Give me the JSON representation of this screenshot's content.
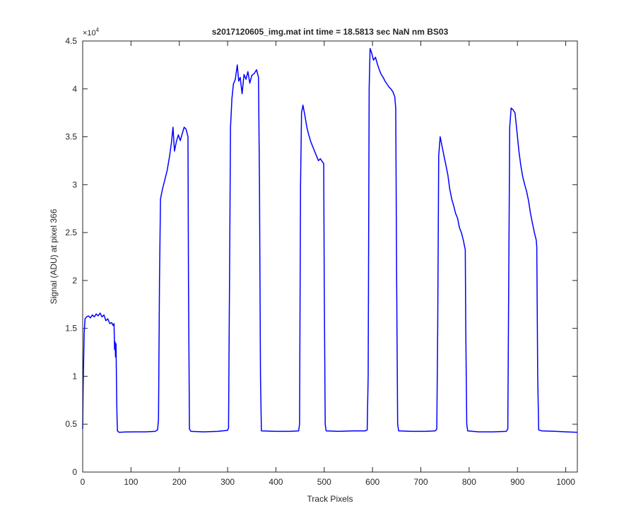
{
  "chart_data": {
    "type": "line",
    "title": "s2017120605_img.mat int time = 18.5813 sec  NaN nm BS03",
    "xlabel": "Track Pixels",
    "ylabel": "Signal (ADU) at pixel 366",
    "xlim": [
      0,
      1024
    ],
    "ylim": [
      0,
      45000
    ],
    "x_ticks": [
      0,
      100,
      200,
      300,
      400,
      500,
      600,
      700,
      800,
      900,
      1000
    ],
    "y_ticks": [
      0,
      0.5,
      1,
      1.5,
      2,
      2.5,
      3,
      3.5,
      4,
      4.5
    ],
    "y_tick_labels": [
      "0",
      "0.5",
      "1",
      "1.5",
      "2",
      "2.5",
      "3",
      "3.5",
      "4",
      "4.5"
    ],
    "y_exponent_label": {
      "base": "×10",
      "power": "4"
    },
    "grid": false,
    "line_color": "#0000ff",
    "series": [
      {
        "color": "#0000ff",
        "points": [
          [
            0,
            4500
          ],
          [
            1,
            9000
          ],
          [
            3,
            14500
          ],
          [
            5,
            16000
          ],
          [
            8,
            16200
          ],
          [
            12,
            16300
          ],
          [
            16,
            16100
          ],
          [
            20,
            16400
          ],
          [
            24,
            16200
          ],
          [
            28,
            16500
          ],
          [
            32,
            16300
          ],
          [
            36,
            16600
          ],
          [
            40,
            16200
          ],
          [
            44,
            16400
          ],
          [
            48,
            15800
          ],
          [
            52,
            16000
          ],
          [
            56,
            15500
          ],
          [
            60,
            15600
          ],
          [
            63,
            15300
          ],
          [
            65,
            15500
          ],
          [
            66,
            12800
          ],
          [
            67,
            13600
          ],
          [
            68,
            12000
          ],
          [
            69,
            13400
          ],
          [
            70,
            9000
          ],
          [
            71,
            6000
          ],
          [
            72,
            4300
          ],
          [
            75,
            4150
          ],
          [
            90,
            4180
          ],
          [
            110,
            4200
          ],
          [
            130,
            4200
          ],
          [
            150,
            4250
          ],
          [
            155,
            4400
          ],
          [
            157,
            5500
          ],
          [
            159,
            20000
          ],
          [
            161,
            28500
          ],
          [
            165,
            29500
          ],
          [
            170,
            30500
          ],
          [
            175,
            31500
          ],
          [
            180,
            33000
          ],
          [
            184,
            34500
          ],
          [
            187,
            36000
          ],
          [
            190,
            33500
          ],
          [
            194,
            34500
          ],
          [
            198,
            35200
          ],
          [
            202,
            34600
          ],
          [
            206,
            35300
          ],
          [
            210,
            36000
          ],
          [
            214,
            35800
          ],
          [
            218,
            35000
          ],
          [
            219,
            20000
          ],
          [
            221,
            4500
          ],
          [
            224,
            4250
          ],
          [
            250,
            4200
          ],
          [
            280,
            4250
          ],
          [
            300,
            4350
          ],
          [
            302,
            4600
          ],
          [
            304,
            20000
          ],
          [
            306,
            36000
          ],
          [
            309,
            39000
          ],
          [
            312,
            40500
          ],
          [
            316,
            41000
          ],
          [
            320,
            42500
          ],
          [
            323,
            40800
          ],
          [
            326,
            41200
          ],
          [
            330,
            39500
          ],
          [
            334,
            41500
          ],
          [
            338,
            41000
          ],
          [
            342,
            41800
          ],
          [
            346,
            40600
          ],
          [
            350,
            41400
          ],
          [
            355,
            41600
          ],
          [
            360,
            42000
          ],
          [
            364,
            41200
          ],
          [
            366,
            30000
          ],
          [
            368,
            10000
          ],
          [
            370,
            4300
          ],
          [
            400,
            4250
          ],
          [
            430,
            4250
          ],
          [
            447,
            4300
          ],
          [
            449,
            5000
          ],
          [
            451,
            30000
          ],
          [
            453,
            37500
          ],
          [
            456,
            38300
          ],
          [
            460,
            37200
          ],
          [
            464,
            36000
          ],
          [
            468,
            35200
          ],
          [
            472,
            34500
          ],
          [
            476,
            34000
          ],
          [
            480,
            33500
          ],
          [
            484,
            33000
          ],
          [
            488,
            32500
          ],
          [
            492,
            32700
          ],
          [
            496,
            32400
          ],
          [
            499,
            32200
          ],
          [
            500,
            20000
          ],
          [
            502,
            5000
          ],
          [
            504,
            4300
          ],
          [
            530,
            4250
          ],
          [
            560,
            4300
          ],
          [
            585,
            4300
          ],
          [
            589,
            4400
          ],
          [
            591,
            10000
          ],
          [
            593,
            40000
          ],
          [
            595,
            44200
          ],
          [
            598,
            43800
          ],
          [
            602,
            43000
          ],
          [
            606,
            43300
          ],
          [
            610,
            42600
          ],
          [
            614,
            42000
          ],
          [
            618,
            41500
          ],
          [
            622,
            41200
          ],
          [
            626,
            40800
          ],
          [
            630,
            40500
          ],
          [
            634,
            40200
          ],
          [
            638,
            40000
          ],
          [
            642,
            39700
          ],
          [
            646,
            39200
          ],
          [
            648,
            38000
          ],
          [
            650,
            20000
          ],
          [
            652,
            5000
          ],
          [
            654,
            4300
          ],
          [
            680,
            4250
          ],
          [
            710,
            4250
          ],
          [
            730,
            4300
          ],
          [
            733,
            4500
          ],
          [
            735,
            15000
          ],
          [
            737,
            33000
          ],
          [
            740,
            35000
          ],
          [
            744,
            34000
          ],
          [
            748,
            33000
          ],
          [
            752,
            32000
          ],
          [
            756,
            31000
          ],
          [
            760,
            29500
          ],
          [
            764,
            28500
          ],
          [
            768,
            27800
          ],
          [
            772,
            27000
          ],
          [
            776,
            26500
          ],
          [
            780,
            25500
          ],
          [
            784,
            25000
          ],
          [
            788,
            24200
          ],
          [
            792,
            23200
          ],
          [
            793,
            15000
          ],
          [
            795,
            5000
          ],
          [
            797,
            4300
          ],
          [
            820,
            4200
          ],
          [
            850,
            4200
          ],
          [
            877,
            4250
          ],
          [
            880,
            4500
          ],
          [
            882,
            20000
          ],
          [
            884,
            36000
          ],
          [
            887,
            38000
          ],
          [
            891,
            37800
          ],
          [
            895,
            37500
          ],
          [
            899,
            35500
          ],
          [
            903,
            33500
          ],
          [
            907,
            32000
          ],
          [
            911,
            30800
          ],
          [
            915,
            30000
          ],
          [
            919,
            29300
          ],
          [
            923,
            28300
          ],
          [
            927,
            27000
          ],
          [
            931,
            26000
          ],
          [
            935,
            25000
          ],
          [
            939,
            24200
          ],
          [
            940,
            23500
          ],
          [
            942,
            10000
          ],
          [
            944,
            4400
          ],
          [
            950,
            4300
          ],
          [
            980,
            4250
          ],
          [
            1000,
            4200
          ],
          [
            1024,
            4150
          ]
        ]
      }
    ]
  }
}
